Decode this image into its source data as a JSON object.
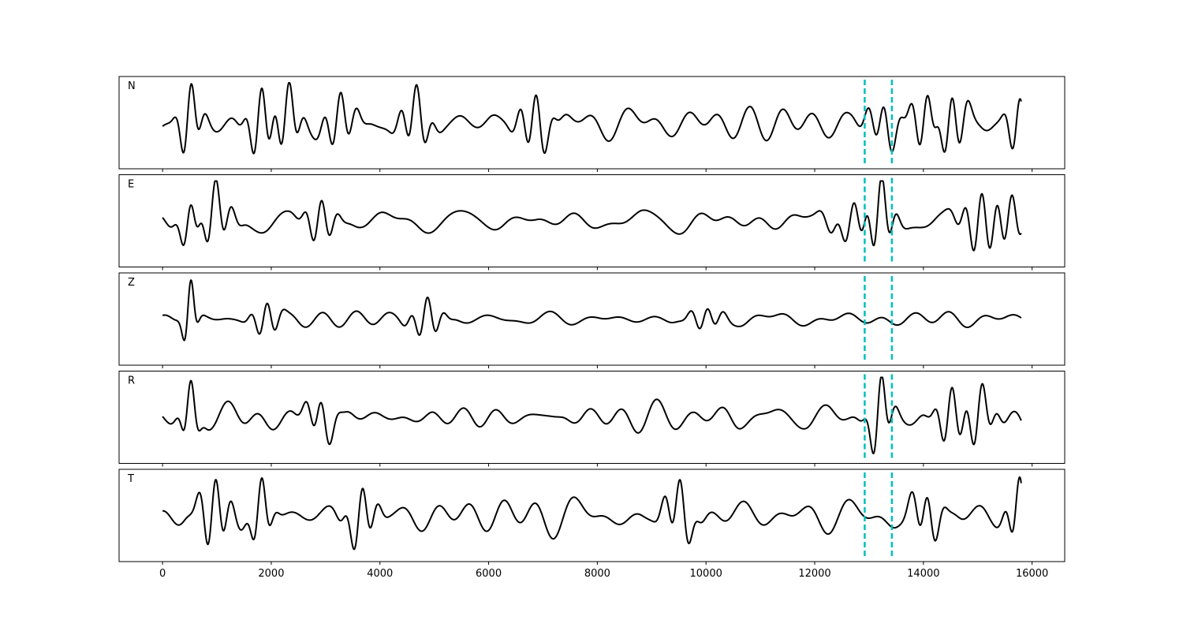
{
  "chart_data": {
    "type": "line",
    "shared_x": true,
    "xlim": [
      -800,
      16600
    ],
    "xticks": [
      0,
      2000,
      4000,
      6000,
      8000,
      10000,
      12000,
      14000,
      16000
    ],
    "xtick_labels": [
      "0",
      "2000",
      "4000",
      "6000",
      "8000",
      "10000",
      "12000",
      "14000",
      "16000"
    ],
    "x_range": [
      0,
      15800
    ],
    "yticks_visible": false,
    "grid": false,
    "line_color": "#000000",
    "marker_color": "#00bfbf",
    "markers": [
      {
        "x": 12920,
        "style": "dashed"
      },
      {
        "x": 13420,
        "style": "dashed"
      }
    ],
    "panels": [
      {
        "label": "N",
        "ylim": [
          -1,
          1
        ],
        "seed": 11,
        "base": 0.42,
        "events": [
          {
            "x": 500,
            "amp": 0.9,
            "w": 150
          },
          {
            "x": 1800,
            "amp": 0.85,
            "w": 180
          },
          {
            "x": 2300,
            "amp": 0.8,
            "w": 180
          },
          {
            "x": 3250,
            "amp": 0.65,
            "w": 220
          },
          {
            "x": 4650,
            "amp": 0.72,
            "w": 200
          },
          {
            "x": 6850,
            "amp": 0.72,
            "w": 220
          },
          {
            "x": 13250,
            "amp": 0.55,
            "w": 220
          },
          {
            "x": 14050,
            "amp": 0.75,
            "w": 200
          },
          {
            "x": 14500,
            "amp": 0.9,
            "w": 200
          },
          {
            "x": 15750,
            "amp": 0.75,
            "w": 150
          }
        ]
      },
      {
        "label": "E",
        "ylim": [
          -1,
          1
        ],
        "seed": 23,
        "base": 0.3,
        "events": [
          {
            "x": 500,
            "amp": 0.65,
            "w": 150
          },
          {
            "x": 950,
            "amp": 0.75,
            "w": 220
          },
          {
            "x": 2900,
            "amp": 0.55,
            "w": 200
          },
          {
            "x": 12700,
            "amp": 0.4,
            "w": 300
          },
          {
            "x": 13200,
            "amp": 0.95,
            "w": 180
          },
          {
            "x": 15050,
            "amp": 0.75,
            "w": 250
          },
          {
            "x": 15600,
            "amp": 0.55,
            "w": 200
          }
        ]
      },
      {
        "label": "Z",
        "ylim": [
          -1,
          1
        ],
        "seed": 37,
        "base": 0.18,
        "events": [
          {
            "x": 500,
            "amp": 1.0,
            "w": 90
          },
          {
            "x": 1900,
            "amp": 0.45,
            "w": 180
          },
          {
            "x": 4850,
            "amp": 0.5,
            "w": 200
          },
          {
            "x": 10000,
            "amp": 0.28,
            "w": 220
          }
        ]
      },
      {
        "label": "R",
        "ylim": [
          -1,
          1
        ],
        "seed": 51,
        "base": 0.35,
        "events": [
          {
            "x": 500,
            "amp": 0.75,
            "w": 120
          },
          {
            "x": 2900,
            "amp": 0.5,
            "w": 200
          },
          {
            "x": 13200,
            "amp": 0.95,
            "w": 150
          },
          {
            "x": 14500,
            "amp": 0.65,
            "w": 200
          },
          {
            "x": 15050,
            "amp": 0.62,
            "w": 200
          }
        ]
      },
      {
        "label": "T",
        "ylim": [
          -1,
          1
        ],
        "seed": 67,
        "base": 0.38,
        "events": [
          {
            "x": 950,
            "amp": 0.9,
            "w": 200
          },
          {
            "x": 1800,
            "amp": 0.75,
            "w": 150
          },
          {
            "x": 3650,
            "amp": 0.7,
            "w": 200
          },
          {
            "x": 9500,
            "amp": 0.7,
            "w": 200
          },
          {
            "x": 14050,
            "amp": 0.6,
            "w": 200
          },
          {
            "x": 15750,
            "amp": 0.85,
            "w": 150
          }
        ]
      }
    ]
  }
}
